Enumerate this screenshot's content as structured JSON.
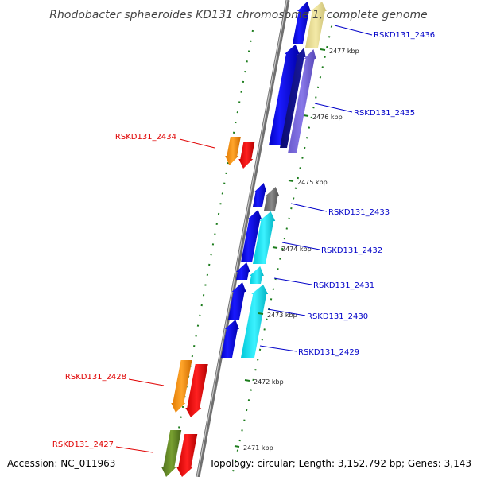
{
  "title": "Rhodobacter sphaeroides KD131 chromosome 1, complete genome",
  "footer": {
    "accession": "Accession: NC_011963",
    "stats": "Topology: circular; Length: 3,152,792 bp; Genes: 3,143"
  },
  "colors": {
    "backbone": "#8c8c8c",
    "tick": "#1c7c1c",
    "forward_label": "#0000c8",
    "reverse_label": "#e00000"
  },
  "ticks": [
    {
      "label": "2477 kbp"
    },
    {
      "label": "2476 kbp"
    },
    {
      "label": "2475 kbp"
    },
    {
      "label": "2474 kbp"
    },
    {
      "label": "2473 kbp"
    },
    {
      "label": "2472 kbp"
    },
    {
      "label": "2471 kbp"
    }
  ],
  "genes": [
    {
      "name": "RSKD131_2436",
      "strand": "+"
    },
    {
      "name": "RSKD131_2435",
      "strand": "+"
    },
    {
      "name": "RSKD131_2434",
      "strand": "-"
    },
    {
      "name": "RSKD131_2433",
      "strand": "+"
    },
    {
      "name": "RSKD131_2432",
      "strand": "+"
    },
    {
      "name": "RSKD131_2431",
      "strand": "+"
    },
    {
      "name": "RSKD131_2430",
      "strand": "+"
    },
    {
      "name": "RSKD131_2429",
      "strand": "+"
    },
    {
      "name": "RSKD131_2428",
      "strand": "-"
    },
    {
      "name": "RSKD131_2427",
      "strand": "-"
    }
  ]
}
